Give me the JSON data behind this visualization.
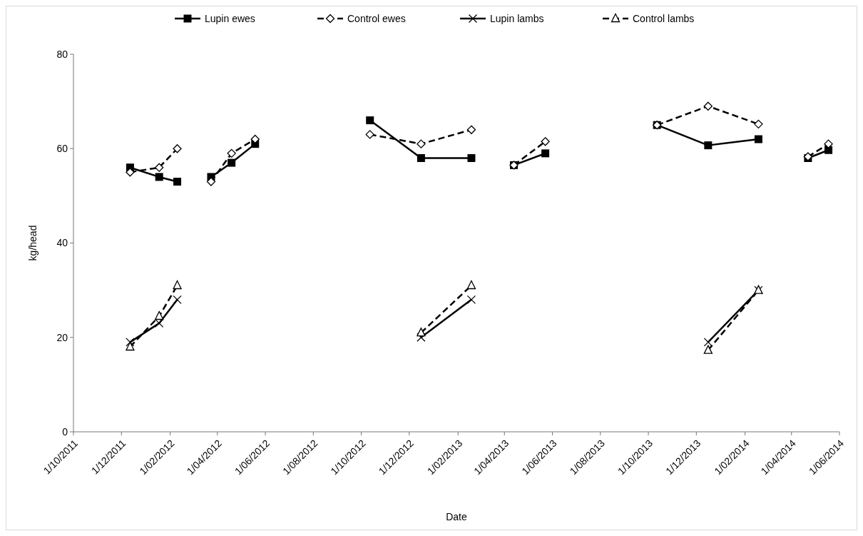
{
  "chart_data": {
    "type": "line",
    "xlabel": "Date",
    "ylabel": "kg/head",
    "ylim": [
      0,
      80
    ],
    "yticks": [
      0,
      20,
      40,
      60,
      80
    ],
    "xlim": [
      "2011-10-01",
      "2014-06-01"
    ],
    "xticks": [
      {
        "value": "2011-10-01",
        "label": "1/10/2011"
      },
      {
        "value": "2011-12-01",
        "label": "1/12/2011"
      },
      {
        "value": "2012-02-01",
        "label": "1/02/2012"
      },
      {
        "value": "2012-04-01",
        "label": "1/04/2012"
      },
      {
        "value": "2012-06-01",
        "label": "1/06/2012"
      },
      {
        "value": "2012-08-01",
        "label": "1/08/2012"
      },
      {
        "value": "2012-10-01",
        "label": "1/10/2012"
      },
      {
        "value": "2012-12-01",
        "label": "1/12/2012"
      },
      {
        "value": "2013-02-01",
        "label": "1/02/2013"
      },
      {
        "value": "2013-04-01",
        "label": "1/04/2013"
      },
      {
        "value": "2013-06-01",
        "label": "1/06/2013"
      },
      {
        "value": "2013-08-01",
        "label": "1/08/2013"
      },
      {
        "value": "2013-10-01",
        "label": "1/10/2013"
      },
      {
        "value": "2013-12-01",
        "label": "1/12/2013"
      },
      {
        "value": "2014-02-01",
        "label": "1/02/2014"
      },
      {
        "value": "2014-04-01",
        "label": "1/04/2014"
      },
      {
        "value": "2014-06-01",
        "label": "1/06/2014"
      }
    ],
    "grid": false,
    "legend": "top",
    "series": [
      {
        "name": "Lupin ewes",
        "color": "#000000",
        "marker": "square",
        "line_style": "solid",
        "x": [
          "2011-12-12",
          "2012-01-18",
          "2012-02-10"
        ],
        "values": [
          56,
          54,
          53
        ]
      },
      {
        "name": "Control ewes",
        "color": "#000000",
        "marker": "diamond",
        "line_style": "dashed",
        "x": [
          "2011-12-12",
          "2012-01-18",
          "2012-02-10"
        ],
        "values": [
          55,
          56,
          60
        ]
      },
      {
        "name": "Lupin lambs",
        "color": "#000000",
        "marker": "cross",
        "line_style": "solid",
        "x": [
          "2011-12-12",
          "2012-01-18",
          "2012-02-10"
        ],
        "values": [
          19,
          23,
          28
        ]
      },
      {
        "name": "Control lambs",
        "color": "#000000",
        "marker": "triangle",
        "line_style": "dashed",
        "x": [
          "2011-12-12",
          "2012-01-18",
          "2012-02-10"
        ],
        "values": [
          18,
          24.5,
          31
        ]
      },
      {
        "color": "#000000",
        "marker": "square",
        "line_style": "solid",
        "x": [
          "2012-03-24",
          "2012-04-19",
          "2012-05-19"
        ],
        "values": [
          54,
          57,
          61
        ]
      },
      {
        "color": "#000000",
        "marker": "diamond",
        "line_style": "dashed",
        "x": [
          "2012-03-24",
          "2012-04-19",
          "2012-05-19"
        ],
        "values": [
          53,
          59,
          62
        ]
      },
      {
        "color": "#000000",
        "marker": "square",
        "line_style": "solid",
        "x": [
          "2012-10-12",
          "2012-12-16",
          "2013-02-18"
        ],
        "values": [
          66,
          58,
          58
        ]
      },
      {
        "color": "#000000",
        "marker": "diamond",
        "line_style": "dashed",
        "x": [
          "2012-10-12",
          "2012-12-16",
          "2013-02-18"
        ],
        "values": [
          63,
          61,
          64
        ]
      },
      {
        "color": "#000000",
        "marker": "cross",
        "line_style": "solid",
        "x": [
          "2012-12-16",
          "2013-02-18"
        ],
        "values": [
          20,
          28
        ]
      },
      {
        "color": "#000000",
        "marker": "triangle",
        "line_style": "dashed",
        "x": [
          "2012-12-16",
          "2013-02-18"
        ],
        "values": [
          21,
          31
        ]
      },
      {
        "color": "#000000",
        "marker": "square",
        "line_style": "solid",
        "x": [
          "2013-04-13",
          "2013-05-23"
        ],
        "values": [
          56.5,
          59
        ]
      },
      {
        "color": "#000000",
        "marker": "diamond",
        "line_style": "dashed",
        "x": [
          "2013-04-13",
          "2013-05-23"
        ],
        "values": [
          56.5,
          61.5
        ]
      },
      {
        "color": "#000000",
        "marker": "square",
        "line_style": "solid",
        "x": [
          "2013-10-12",
          "2013-12-16",
          "2014-02-18"
        ],
        "values": [
          65,
          60.7,
          62
        ]
      },
      {
        "color": "#000000",
        "marker": "diamond",
        "line_style": "dashed",
        "x": [
          "2013-10-12",
          "2013-12-16",
          "2014-02-18"
        ],
        "values": [
          65,
          69,
          65.2
        ]
      },
      {
        "color": "#000000",
        "marker": "cross",
        "line_style": "solid",
        "x": [
          "2013-12-16",
          "2014-02-18"
        ],
        "values": [
          19,
          30
        ]
      },
      {
        "color": "#000000",
        "marker": "triangle",
        "line_style": "dashed",
        "x": [
          "2013-12-16",
          "2014-02-18"
        ],
        "values": [
          17.3,
          30
        ]
      },
      {
        "color": "#000000",
        "marker": "square",
        "line_style": "solid",
        "x": [
          "2014-04-22",
          "2014-05-18"
        ],
        "values": [
          58,
          59.7
        ]
      },
      {
        "color": "#000000",
        "marker": "diamond",
        "line_style": "dashed",
        "x": [
          "2014-04-22",
          "2014-05-18"
        ],
        "values": [
          58.3,
          61
        ]
      }
    ]
  }
}
